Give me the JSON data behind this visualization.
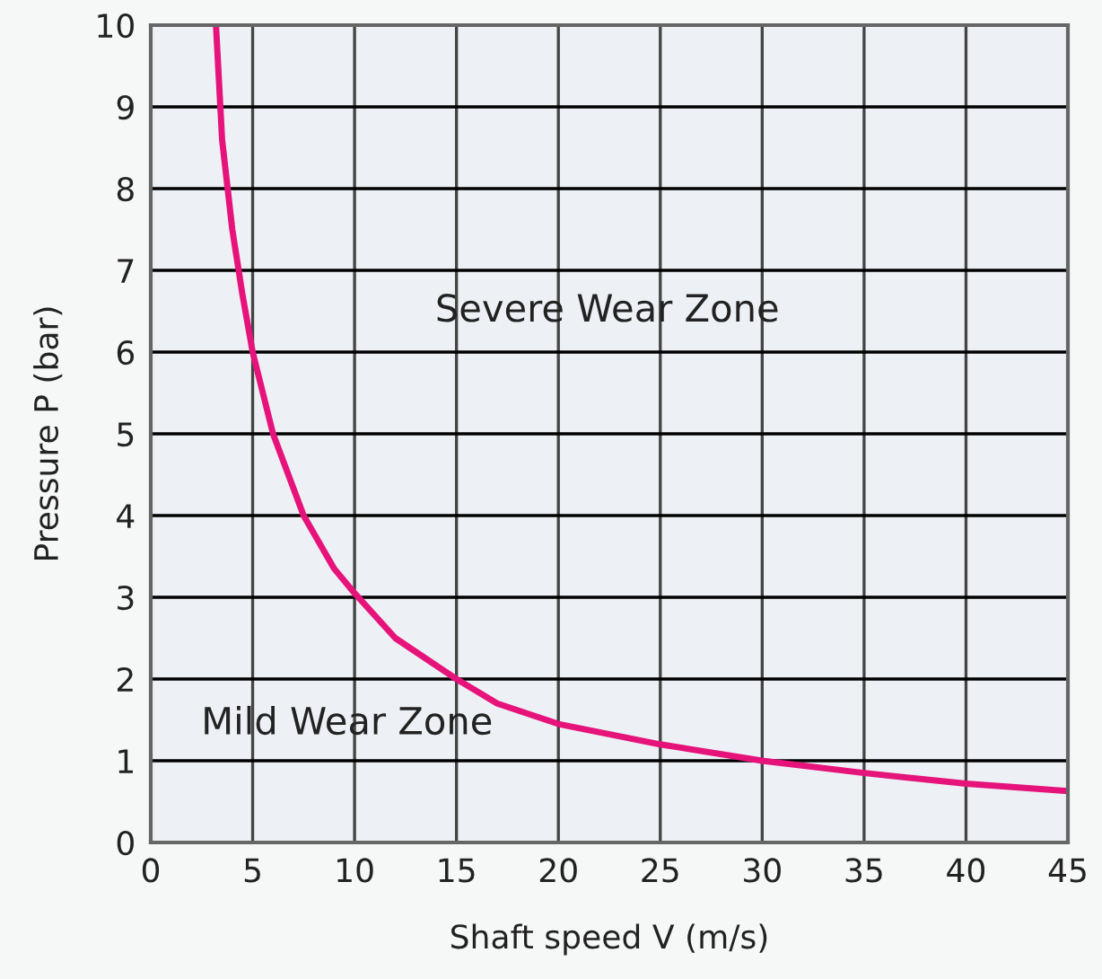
{
  "chart_data": {
    "type": "line",
    "xlabel": "Shaft speed V (m/s)",
    "ylabel": "Pressure P (bar)",
    "x": [
      3.2,
      3.5,
      4,
      4.5,
      5,
      6,
      7.5,
      9,
      10,
      12,
      15,
      17,
      20,
      25,
      30,
      35,
      40,
      45
    ],
    "series": [
      {
        "color": "#e6137b",
        "values": [
          10,
          8.6,
          7.5,
          6.7,
          6.0,
          5.0,
          4.0,
          3.35,
          3.05,
          2.5,
          2.0,
          1.7,
          1.45,
          1.2,
          1.0,
          0.85,
          0.72,
          0.63
        ]
      }
    ],
    "xlim": [
      0,
      45
    ],
    "xticks": [
      0,
      5,
      10,
      15,
      20,
      25,
      30,
      35,
      40,
      45
    ],
    "ylim": [
      0,
      10
    ],
    "yticks": [
      0,
      1,
      2,
      3,
      4,
      5,
      6,
      7,
      8,
      9,
      10
    ],
    "grid": true,
    "marker": "none",
    "line_style": "solid",
    "annotations": [
      "Severe Wear Zone",
      "Mild Wear Zone"
    ]
  }
}
